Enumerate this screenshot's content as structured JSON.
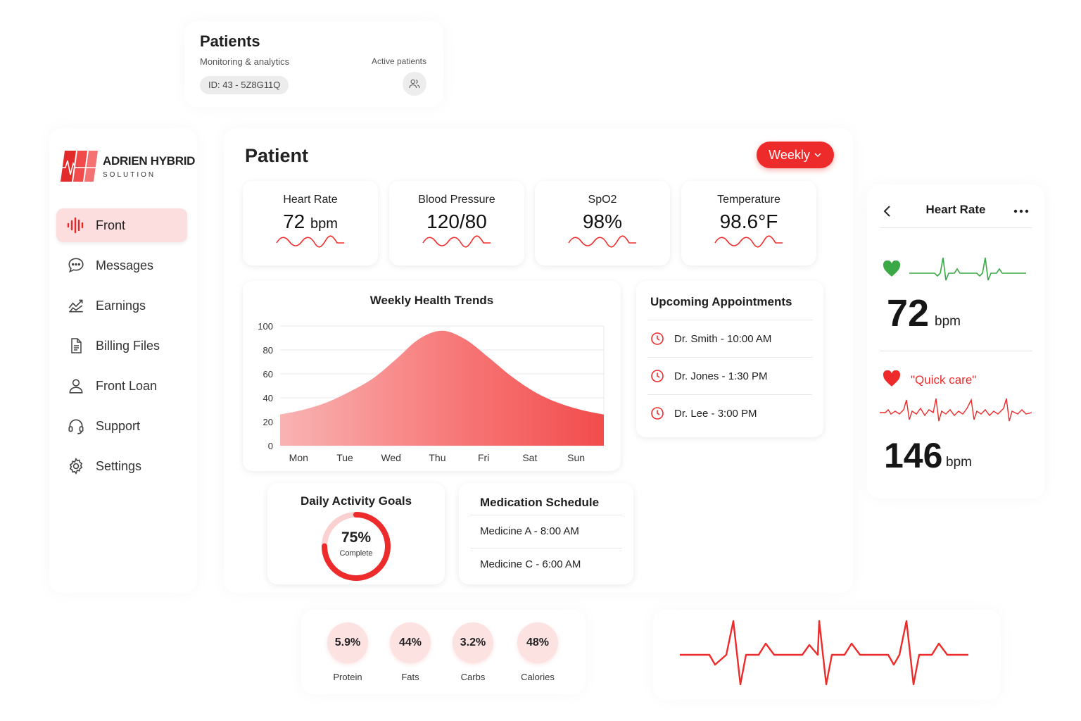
{
  "patients_card": {
    "title": "Patients",
    "subtitle": "Monitoring & analytics",
    "active_label": "Active patients",
    "id_pill": "ID: 43 - 5Z8G11Q",
    "user_icon": "users-icon"
  },
  "brand": {
    "name": "ADRIEN HYBRID",
    "tagline": "SOLUTION",
    "logo_icon": "heartbeat-logo-icon",
    "accent": "#ee2b2b"
  },
  "sidebar": {
    "items": [
      {
        "label": "Front",
        "icon": "waveform-icon",
        "active": true
      },
      {
        "label": "Messages",
        "icon": "chat-bubble-icon",
        "active": false
      },
      {
        "label": "Earnings",
        "icon": "chart-line-icon",
        "active": false
      },
      {
        "label": "Billing Files",
        "icon": "document-icon",
        "active": false
      },
      {
        "label": "Front Loan",
        "icon": "user-icon",
        "active": false
      },
      {
        "label": "Support",
        "icon": "headset-icon",
        "active": false
      },
      {
        "label": "Settings",
        "icon": "gear-icon",
        "active": false
      }
    ]
  },
  "main": {
    "title": "Patient",
    "period_button": "Weekly",
    "stats": [
      {
        "label": "Heart Rate",
        "value": "72",
        "unit": "bpm"
      },
      {
        "label": "Blood Pressure",
        "value": "120/80",
        "unit": ""
      },
      {
        "label": "SpO2",
        "value": "98%",
        "unit": ""
      },
      {
        "label": "Temperature",
        "value": "98.6°F",
        "unit": ""
      }
    ]
  },
  "chart_data": {
    "type": "area",
    "title": "Weekly Health Trends",
    "categories": [
      "Mon",
      "Tue",
      "Wed",
      "Thu",
      "Fri",
      "Sat",
      "Sun"
    ],
    "x": [
      0,
      0.5,
      1,
      1.5,
      2,
      2.5,
      3,
      3.5,
      4,
      4.5,
      5,
      5.5,
      6,
      6.5,
      7
    ],
    "values": [
      26,
      30,
      36,
      45,
      56,
      72,
      89,
      96,
      89,
      74,
      58,
      45,
      36,
      30,
      26
    ],
    "ylim": [
      0,
      100
    ],
    "yticks": [
      "0",
      "20",
      "40",
      "60",
      "80",
      "100"
    ],
    "grid": true,
    "legend": "none"
  },
  "appointments": {
    "title": "Upcoming Appointments",
    "items": [
      "Dr. Smith - 10:00 AM",
      "Dr. Jones - 1:30 PM",
      "Dr. Lee - 3:00 PM"
    ]
  },
  "goals": {
    "title": "Daily Activity Goals",
    "percent": "75%",
    "progress": 0.75,
    "caption": "Complete"
  },
  "medications": {
    "title": "Medication Schedule",
    "items": [
      "Medicine A - 8:00 AM",
      "Medicine C - 6:00 AM"
    ]
  },
  "nutrition": [
    {
      "value": "5.9%",
      "label": "Protein"
    },
    {
      "value": "44%",
      "label": "Fats"
    },
    {
      "value": "3.2%",
      "label": "Carbs"
    },
    {
      "value": "48%",
      "label": "Calories"
    }
  ],
  "heart_panel": {
    "title": "Heart Rate",
    "back_icon": "chevron-left-icon",
    "more_icon": "more-dots-icon",
    "reading1_value": "72",
    "reading1_unit": "bpm",
    "reading1_color": "#3aa845",
    "quick_care": "\"Quick care\"",
    "reading2_value": "146",
    "reading2_unit": "bpm",
    "reading2_color": "#ee2b2b"
  }
}
